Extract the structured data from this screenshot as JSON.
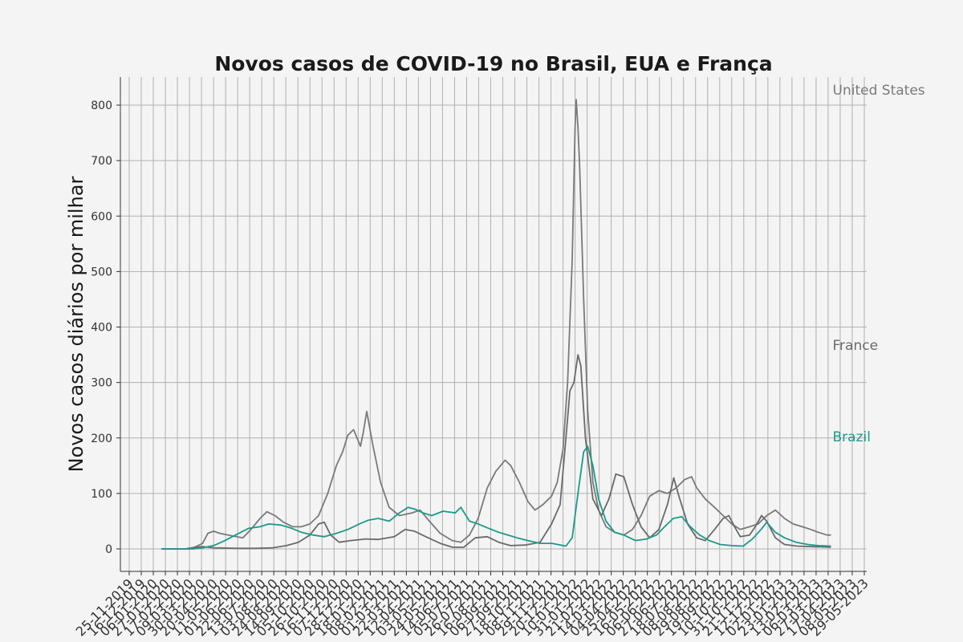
{
  "chart_data": {
    "type": "line",
    "title": "Novos casos de COVID-19 no Brasil, EUA e França",
    "xlabel": "",
    "ylabel": "Novos casos diários por milhar",
    "ylim": [
      -40,
      850
    ],
    "yticks": [
      0,
      100,
      200,
      300,
      400,
      500,
      600,
      700,
      800
    ],
    "x_range": [
      "2019-11-25",
      "2023-05-29"
    ],
    "xtick_labels": [
      "25-11-2019",
      "16-12-2019",
      "06-01-2020",
      "27-01-2020",
      "17-02-2020",
      "09-03-2020",
      "30-03-2020",
      "20-04-2020",
      "11-05-2020",
      "01-06-2020",
      "22-06-2020",
      "13-07-2020",
      "03-08-2020",
      "24-08-2020",
      "14-09-2020",
      "05-10-2020",
      "26-10-2020",
      "16-11-2020",
      "07-12-2020",
      "28-12-2020",
      "18-01-2021",
      "08-02-2021",
      "01-03-2021",
      "22-03-2021",
      "12-04-2021",
      "03-05-2021",
      "24-05-2021",
      "14-06-2021",
      "05-07-2021",
      "26-07-2021",
      "16-08-2021",
      "06-09-2021",
      "27-09-2021",
      "18-10-2021",
      "08-11-2021",
      "29-11-2021",
      "20-12-2021",
      "10-01-2022",
      "31-01-2022",
      "21-02-2022",
      "14-03-2022",
      "04-04-2022",
      "25-04-2022",
      "16-05-2022",
      "06-06-2022",
      "27-06-2022",
      "18-07-2022",
      "08-08-2022",
      "29-08-2022",
      "19-09-2022",
      "10-10-2022",
      "31-10-2022",
      "21-11-2022",
      "12-12-2022",
      "02-01-2023",
      "23-01-2023",
      "13-02-2023",
      "06-03-2023",
      "27-03-2023",
      "17-04-2023",
      "08-05-2023",
      "29-05-2023"
    ],
    "grid": true,
    "series": [
      {
        "name": "United States",
        "color": "#7a7a7a",
        "points": [
          [
            "2020-01-20",
            0
          ],
          [
            "2020-03-09",
            0
          ],
          [
            "2020-03-20",
            4
          ],
          [
            "2020-04-01",
            10
          ],
          [
            "2020-04-10",
            28
          ],
          [
            "2020-04-20",
            32
          ],
          [
            "2020-05-01",
            28
          ],
          [
            "2020-05-20",
            24
          ],
          [
            "2020-06-10",
            20
          ],
          [
            "2020-06-25",
            36
          ],
          [
            "2020-07-10",
            55
          ],
          [
            "2020-07-22",
            67
          ],
          [
            "2020-08-05",
            60
          ],
          [
            "2020-08-20",
            48
          ],
          [
            "2020-09-05",
            40
          ],
          [
            "2020-09-20",
            40
          ],
          [
            "2020-10-05",
            45
          ],
          [
            "2020-10-20",
            60
          ],
          [
            "2020-11-05",
            100
          ],
          [
            "2020-11-20",
            150
          ],
          [
            "2020-12-01",
            175
          ],
          [
            "2020-12-10",
            205
          ],
          [
            "2020-12-20",
            215
          ],
          [
            "2021-01-01",
            185
          ],
          [
            "2021-01-06",
            210
          ],
          [
            "2021-01-12",
            248
          ],
          [
            "2021-01-22",
            190
          ],
          [
            "2021-02-05",
            120
          ],
          [
            "2021-02-20",
            75
          ],
          [
            "2021-03-10",
            60
          ],
          [
            "2021-04-01",
            65
          ],
          [
            "2021-04-15",
            70
          ],
          [
            "2021-05-01",
            50
          ],
          [
            "2021-05-20",
            28
          ],
          [
            "2021-06-10",
            15
          ],
          [
            "2021-06-25",
            12
          ],
          [
            "2021-07-10",
            25
          ],
          [
            "2021-07-25",
            55
          ],
          [
            "2021-08-10",
            110
          ],
          [
            "2021-08-25",
            140
          ],
          [
            "2021-09-10",
            160
          ],
          [
            "2021-09-20",
            150
          ],
          [
            "2021-10-05",
            120
          ],
          [
            "2021-10-20",
            85
          ],
          [
            "2021-11-01",
            70
          ],
          [
            "2021-11-15",
            80
          ],
          [
            "2021-11-30",
            95
          ],
          [
            "2021-12-10",
            120
          ],
          [
            "2021-12-20",
            180
          ],
          [
            "2021-12-28",
            300
          ],
          [
            "2022-01-05",
            520
          ],
          [
            "2022-01-10",
            760
          ],
          [
            "2022-01-12",
            810
          ],
          [
            "2022-01-15",
            760
          ],
          [
            "2022-01-18",
            690
          ],
          [
            "2022-01-25",
            450
          ],
          [
            "2022-02-01",
            250
          ],
          [
            "2022-02-10",
            120
          ],
          [
            "2022-02-20",
            70
          ],
          [
            "2022-03-05",
            40
          ],
          [
            "2022-03-20",
            30
          ],
          [
            "2022-04-05",
            25
          ],
          [
            "2022-04-20",
            35
          ],
          [
            "2022-05-05",
            60
          ],
          [
            "2022-05-20",
            95
          ],
          [
            "2022-06-05",
            105
          ],
          [
            "2022-06-20",
            100
          ],
          [
            "2022-07-05",
            110
          ],
          [
            "2022-07-20",
            125
          ],
          [
            "2022-08-01",
            130
          ],
          [
            "2022-08-10",
            110
          ],
          [
            "2022-08-25",
            90
          ],
          [
            "2022-09-10",
            75
          ],
          [
            "2022-09-25",
            60
          ],
          [
            "2022-10-10",
            45
          ],
          [
            "2022-10-25",
            35
          ],
          [
            "2022-11-10",
            40
          ],
          [
            "2022-11-25",
            45
          ],
          [
            "2022-12-10",
            60
          ],
          [
            "2022-12-25",
            70
          ],
          [
            "2023-01-10",
            55
          ],
          [
            "2023-01-25",
            45
          ],
          [
            "2023-02-10",
            40
          ],
          [
            "2023-02-25",
            35
          ],
          [
            "2023-03-10",
            30
          ],
          [
            "2023-03-25",
            25
          ],
          [
            "2023-04-01",
            25
          ]
        ]
      },
      {
        "name": "France",
        "color": "#6a6a6a",
        "points": [
          [
            "2020-01-20",
            0
          ],
          [
            "2020-03-01",
            0
          ],
          [
            "2020-03-20",
            3
          ],
          [
            "2020-04-01",
            4
          ],
          [
            "2020-04-20",
            2
          ],
          [
            "2020-06-01",
            1
          ],
          [
            "2020-07-01",
            1
          ],
          [
            "2020-08-01",
            2
          ],
          [
            "2020-08-25",
            6
          ],
          [
            "2020-09-15",
            12
          ],
          [
            "2020-10-05",
            25
          ],
          [
            "2020-10-20",
            45
          ],
          [
            "2020-10-30",
            48
          ],
          [
            "2020-11-10",
            25
          ],
          [
            "2020-11-25",
            12
          ],
          [
            "2020-12-15",
            15
          ],
          [
            "2021-01-10",
            18
          ],
          [
            "2021-02-01",
            17
          ],
          [
            "2021-03-01",
            22
          ],
          [
            "2021-03-20",
            35
          ],
          [
            "2021-04-05",
            32
          ],
          [
            "2021-04-25",
            22
          ],
          [
            "2021-05-20",
            10
          ],
          [
            "2021-06-10",
            3
          ],
          [
            "2021-06-30",
            3
          ],
          [
            "2021-07-20",
            20
          ],
          [
            "2021-08-10",
            22
          ],
          [
            "2021-08-30",
            12
          ],
          [
            "2021-09-20",
            6
          ],
          [
            "2021-10-15",
            7
          ],
          [
            "2021-11-10",
            12
          ],
          [
            "2021-11-30",
            45
          ],
          [
            "2021-12-15",
            80
          ],
          [
            "2021-12-25",
            200
          ],
          [
            "2022-01-01",
            285
          ],
          [
            "2022-01-08",
            300
          ],
          [
            "2022-01-15",
            350
          ],
          [
            "2022-01-20",
            330
          ],
          [
            "2022-01-28",
            200
          ],
          [
            "2022-02-10",
            90
          ],
          [
            "2022-02-25",
            60
          ],
          [
            "2022-03-10",
            90
          ],
          [
            "2022-03-22",
            135
          ],
          [
            "2022-04-05",
            130
          ],
          [
            "2022-04-20",
            80
          ],
          [
            "2022-05-05",
            40
          ],
          [
            "2022-05-20",
            20
          ],
          [
            "2022-06-05",
            35
          ],
          [
            "2022-06-20",
            80
          ],
          [
            "2022-07-01",
            128
          ],
          [
            "2022-07-10",
            95
          ],
          [
            "2022-07-25",
            45
          ],
          [
            "2022-08-10",
            20
          ],
          [
            "2022-08-25",
            15
          ],
          [
            "2022-09-10",
            35
          ],
          [
            "2022-09-25",
            55
          ],
          [
            "2022-10-05",
            60
          ],
          [
            "2022-10-15",
            40
          ],
          [
            "2022-10-25",
            22
          ],
          [
            "2022-11-10",
            25
          ],
          [
            "2022-11-20",
            40
          ],
          [
            "2022-12-01",
            60
          ],
          [
            "2022-12-10",
            50
          ],
          [
            "2022-12-25",
            20
          ],
          [
            "2023-01-10",
            8
          ],
          [
            "2023-02-01",
            5
          ],
          [
            "2023-03-01",
            4
          ],
          [
            "2023-04-01",
            3
          ]
        ]
      },
      {
        "name": "Brazil",
        "color": "#1a9a8a",
        "points": [
          [
            "2020-01-20",
            0
          ],
          [
            "2020-03-15",
            0
          ],
          [
            "2020-04-01",
            2
          ],
          [
            "2020-04-20",
            6
          ],
          [
            "2020-05-10",
            15
          ],
          [
            "2020-06-01",
            27
          ],
          [
            "2020-06-20",
            37
          ],
          [
            "2020-07-10",
            40
          ],
          [
            "2020-07-25",
            45
          ],
          [
            "2020-08-15",
            43
          ],
          [
            "2020-09-01",
            38
          ],
          [
            "2020-09-20",
            30
          ],
          [
            "2020-10-10",
            25
          ],
          [
            "2020-10-30",
            22
          ],
          [
            "2020-11-20",
            28
          ],
          [
            "2020-12-10",
            35
          ],
          [
            "2020-12-30",
            45
          ],
          [
            "2021-01-15",
            52
          ],
          [
            "2021-02-01",
            55
          ],
          [
            "2021-02-20",
            50
          ],
          [
            "2021-03-10",
            65
          ],
          [
            "2021-03-25",
            75
          ],
          [
            "2021-04-05",
            72
          ],
          [
            "2021-04-20",
            65
          ],
          [
            "2021-05-05",
            60
          ],
          [
            "2021-05-25",
            68
          ],
          [
            "2021-06-15",
            65
          ],
          [
            "2021-06-25",
            75
          ],
          [
            "2021-07-10",
            50
          ],
          [
            "2021-07-25",
            45
          ],
          [
            "2021-08-10",
            38
          ],
          [
            "2021-08-30",
            30
          ],
          [
            "2021-09-15",
            25
          ],
          [
            "2021-10-01",
            20
          ],
          [
            "2021-10-20",
            15
          ],
          [
            "2021-11-10",
            10
          ],
          [
            "2021-12-01",
            10
          ],
          [
            "2021-12-25",
            5
          ],
          [
            "2022-01-05",
            20
          ],
          [
            "2022-01-15",
            100
          ],
          [
            "2022-01-25",
            175
          ],
          [
            "2022-02-01",
            185
          ],
          [
            "2022-02-10",
            150
          ],
          [
            "2022-02-20",
            90
          ],
          [
            "2022-03-05",
            50
          ],
          [
            "2022-03-20",
            30
          ],
          [
            "2022-04-05",
            25
          ],
          [
            "2022-04-25",
            15
          ],
          [
            "2022-05-15",
            18
          ],
          [
            "2022-06-01",
            25
          ],
          [
            "2022-06-15",
            40
          ],
          [
            "2022-06-30",
            55
          ],
          [
            "2022-07-15",
            58
          ],
          [
            "2022-07-30",
            40
          ],
          [
            "2022-08-15",
            25
          ],
          [
            "2022-09-01",
            15
          ],
          [
            "2022-09-20",
            8
          ],
          [
            "2022-10-10",
            6
          ],
          [
            "2022-10-30",
            5
          ],
          [
            "2022-11-15",
            18
          ],
          [
            "2022-11-30",
            35
          ],
          [
            "2022-12-10",
            48
          ],
          [
            "2022-12-25",
            30
          ],
          [
            "2023-01-10",
            20
          ],
          [
            "2023-01-30",
            12
          ],
          [
            "2023-02-20",
            8
          ],
          [
            "2023-03-10",
            6
          ],
          [
            "2023-04-01",
            5
          ]
        ]
      }
    ]
  }
}
